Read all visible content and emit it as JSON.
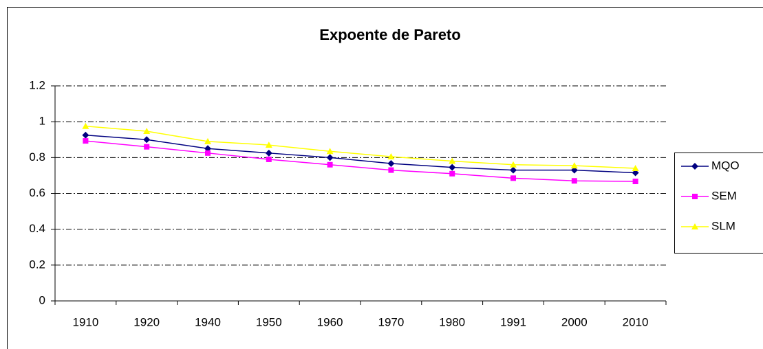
{
  "chart_data": {
    "type": "line",
    "title": "Expoente de Pareto",
    "categories": [
      "1910",
      "1920",
      "1940",
      "1950",
      "1960",
      "1970",
      "1980",
      "1991",
      "2000",
      "2010"
    ],
    "series": [
      {
        "name": "MQO",
        "color": "#000080",
        "marker": "diamond",
        "values": [
          0.925,
          0.9,
          0.85,
          0.825,
          0.8,
          0.767,
          0.745,
          0.73,
          0.73,
          0.715
        ]
      },
      {
        "name": "SEM",
        "color": "#ff00ff",
        "marker": "square",
        "values": [
          0.893,
          0.86,
          0.825,
          0.79,
          0.76,
          0.73,
          0.71,
          0.685,
          0.67,
          0.667
        ]
      },
      {
        "name": "SLM",
        "color": "#ffff00",
        "marker": "triangle",
        "values": [
          0.975,
          0.947,
          0.89,
          0.87,
          0.835,
          0.805,
          0.78,
          0.76,
          0.755,
          0.74
        ]
      }
    ],
    "ylim": [
      0,
      1.2
    ],
    "yticks": [
      0,
      0.2,
      0.4,
      0.6,
      0.8,
      1,
      1.2
    ],
    "grid": true,
    "legend": "right"
  }
}
